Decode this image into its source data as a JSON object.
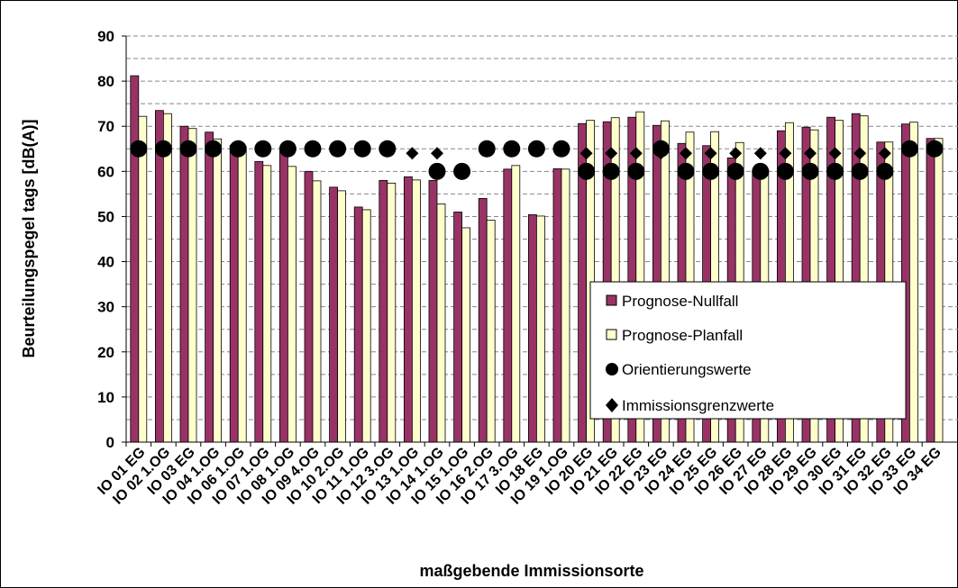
{
  "chart_data": {
    "type": "bar",
    "xlabel": "maßgebende Immissionsorte",
    "ylabel": "Beurteilungspegel tags [dB(A)]",
    "ylim": [
      0,
      90
    ],
    "yticks": [
      0,
      10,
      20,
      30,
      40,
      50,
      60,
      70,
      80,
      90
    ],
    "grid": "dashed horizontal",
    "legend_position": "bottom-right",
    "colors": {
      "nullfall": "#993366",
      "planfall": "#FFFFCC",
      "marker": "#000000"
    },
    "categories": [
      "IO 01 EG",
      "IO 02 1.OG",
      "IO 03 EG",
      "IO 04 1.OG",
      "IO 06 1.OG",
      "IO 07 1.OG",
      "IO 08 1.OG",
      "IO 09 4.OG",
      "IO 10 2.OG",
      "IO 11 1.OG",
      "IO 12 3.OG",
      "IO 13 1.OG",
      "IO 14 1.OG",
      "IO 15 1.OG",
      "IO 16 2.OG",
      "IO 17 3.OG",
      "IO 18 EG",
      "IO 19 1.OG",
      "IO 20 EG",
      "IO 21 EG",
      "IO 22 EG",
      "IO 23 EG",
      "IO 24 EG",
      "IO 25 EG",
      "IO 26 EG",
      "IO 27 EG",
      "IO 28 EG",
      "IO 29 EG",
      "IO 30 EG",
      "IO 31 EG",
      "IO 32 EG",
      "IO 33 EG",
      "IO 34 EG"
    ],
    "series": [
      {
        "name": "Prognose-Nullfall",
        "kind": "bar",
        "values": [
          81.2,
          73.5,
          70.0,
          68.7,
          65.8,
          62.2,
          64.5,
          60.0,
          56.5,
          52.1,
          58.0,
          58.8,
          58.0,
          51.0,
          54.0,
          60.5,
          50.4,
          60.6,
          70.6,
          71.0,
          72.0,
          70.2,
          66.2,
          65.7,
          63.0,
          60.0,
          69.0,
          69.8,
          72.0,
          72.8,
          66.5,
          70.5,
          67.3
        ]
      },
      {
        "name": "Prognose-Planfall",
        "kind": "bar",
        "values": [
          72.2,
          72.8,
          69.5,
          67.2,
          65.5,
          61.3,
          61.1,
          57.9,
          55.7,
          51.5,
          57.4,
          58.1,
          52.8,
          47.5,
          49.2,
          61.3,
          50.1,
          60.5,
          71.3,
          71.9,
          73.2,
          71.2,
          68.7,
          68.8,
          66.4,
          60.4,
          70.8,
          69.2,
          71.3,
          72.3,
          66.5,
          70.9,
          67.3
        ]
      },
      {
        "name": "Orientierungswerte",
        "kind": "marker-circle",
        "values": [
          65,
          65,
          65,
          65,
          65,
          65,
          65,
          65,
          65,
          65,
          65,
          null,
          60,
          60,
          65,
          65,
          65,
          65,
          60,
          60,
          60,
          65,
          60,
          60,
          60,
          60,
          60,
          60,
          60,
          60,
          60,
          65,
          65
        ]
      },
      {
        "name": "Immissionsgrenzwerte",
        "kind": "marker-diamond",
        "values": [
          null,
          null,
          null,
          null,
          null,
          null,
          null,
          null,
          null,
          null,
          null,
          64,
          64,
          null,
          null,
          null,
          null,
          null,
          64,
          64,
          64,
          64,
          64,
          64,
          64,
          64,
          64,
          64,
          64,
          64,
          64,
          null,
          null
        ]
      }
    ]
  }
}
